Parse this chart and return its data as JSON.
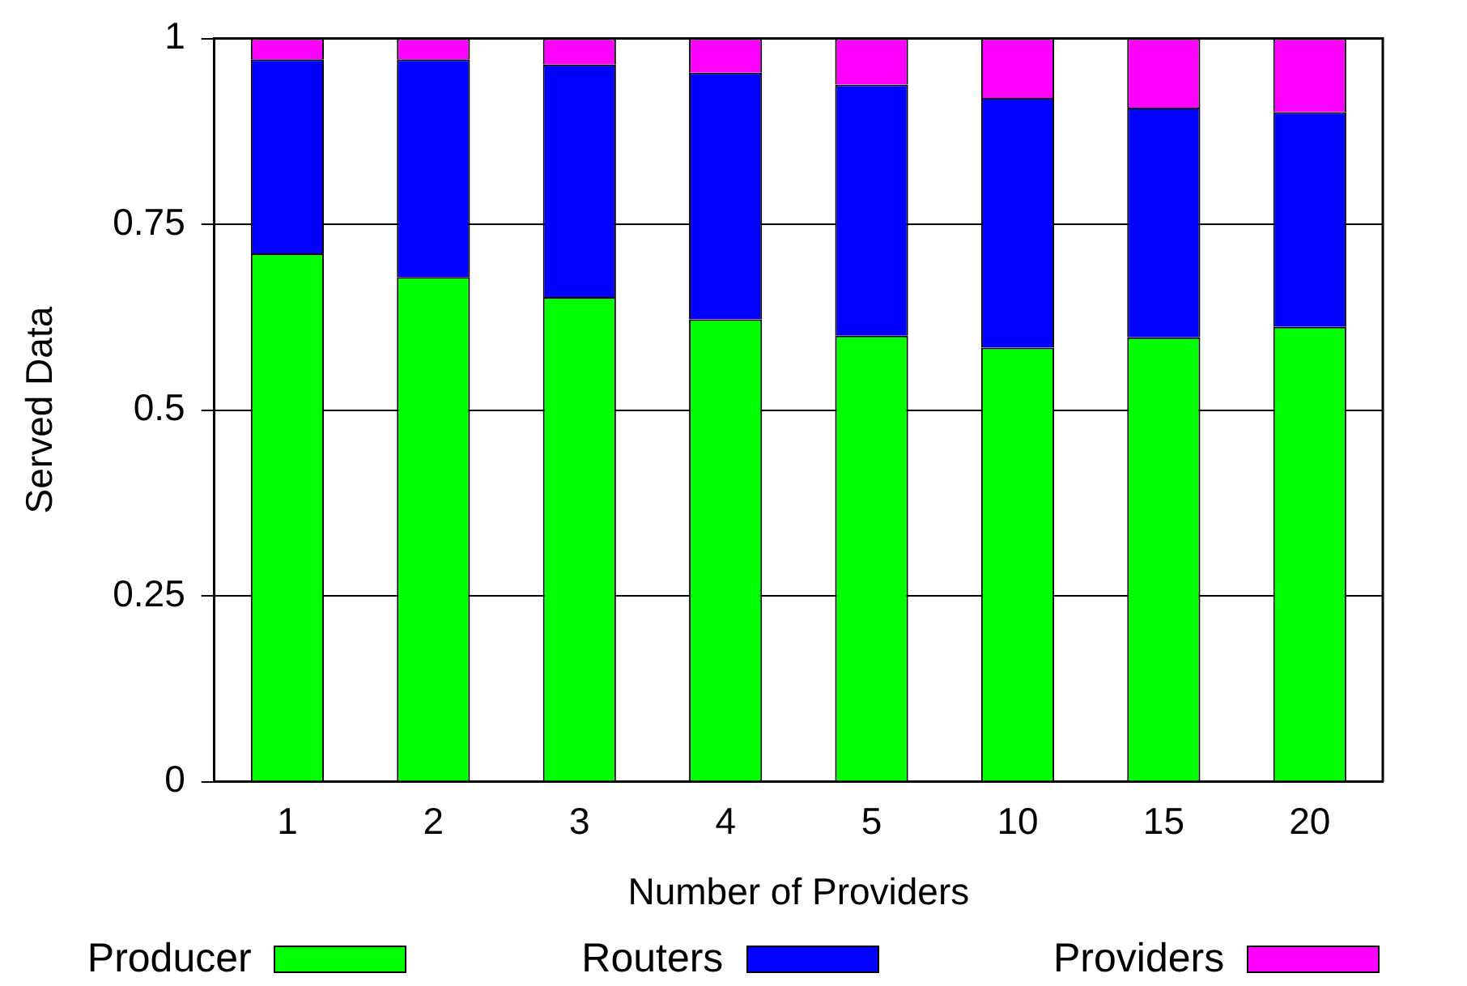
{
  "chart_data": {
    "type": "bar",
    "stacked": true,
    "xlabel": "Number of Providers",
    "ylabel": "Served Data",
    "categories": [
      "1",
      "2",
      "3",
      "4",
      "5",
      "10",
      "15",
      "20"
    ],
    "series": [
      {
        "name": "Producer",
        "color": "#00ff00",
        "values": [
          0.711,
          0.679,
          0.652,
          0.622,
          0.6,
          0.584,
          0.598,
          0.612
        ]
      },
      {
        "name": "Routers",
        "color": "#0000ff",
        "values": [
          0.261,
          0.293,
          0.313,
          0.332,
          0.338,
          0.336,
          0.309,
          0.289
        ]
      },
      {
        "name": "Providers",
        "color": "#ff00ff",
        "values": [
          0.028,
          0.028,
          0.035,
          0.046,
          0.062,
          0.08,
          0.093,
          0.099
        ]
      }
    ],
    "ylim": [
      0,
      1
    ],
    "yticks": [
      0,
      0.25,
      0.5,
      0.75,
      1
    ],
    "grid": "y",
    "legend": "bottom"
  }
}
